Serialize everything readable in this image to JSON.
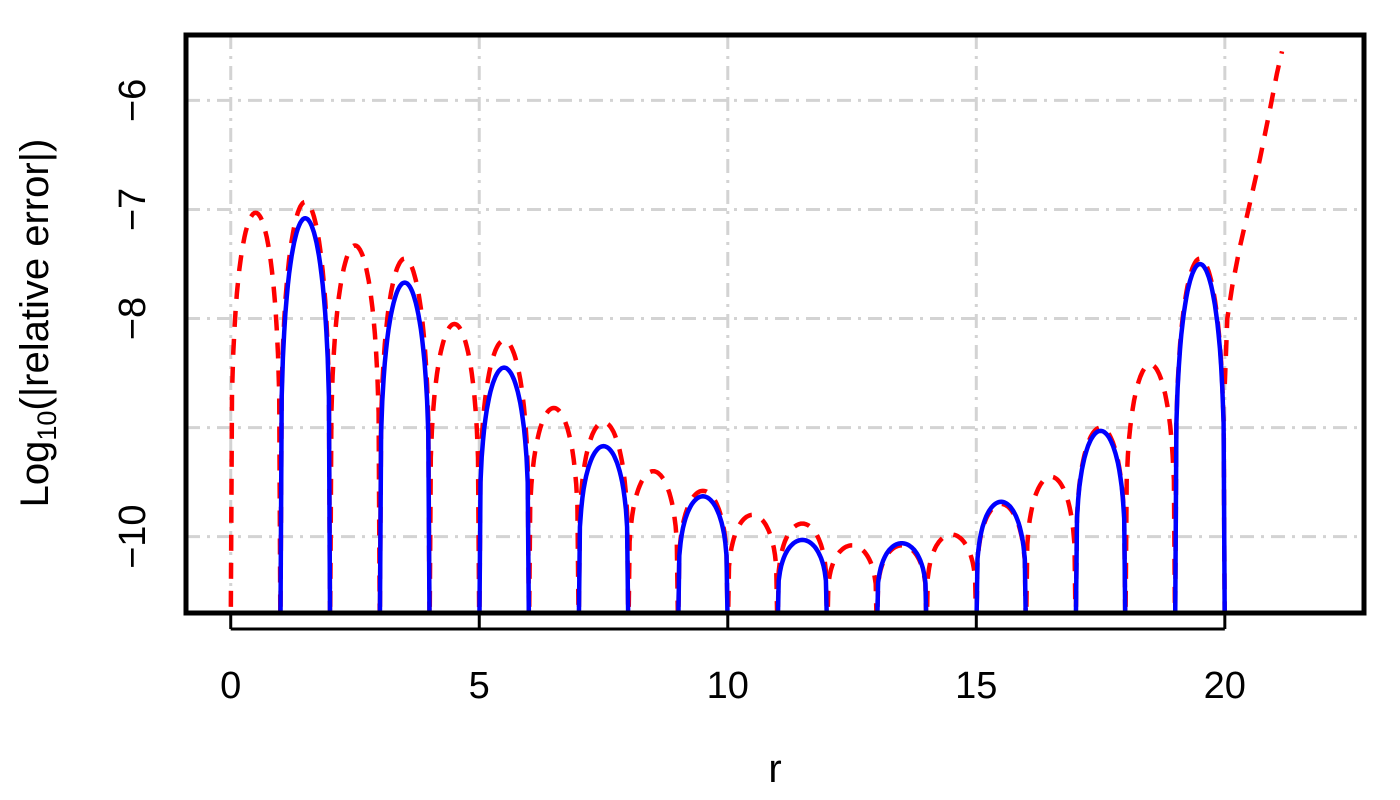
{
  "chart_data": {
    "type": "line",
    "title": "",
    "xlabel": "r",
    "ylabel": {
      "prefix": "Log",
      "subscript": "10",
      "suffix": "(|relative error|)"
    },
    "xlim": [
      -0.9,
      22.8
    ],
    "ylim": [
      -10.7,
      -5.4
    ],
    "x_ticks": [
      0,
      5,
      10,
      15,
      20
    ],
    "x_tick_labels": [
      "0",
      "5",
      "10",
      "15",
      "20"
    ],
    "y_ticks": [
      -6,
      -7,
      -8,
      -9,
      -10
    ],
    "y_tick_labels": [
      "−6",
      "−7",
      "−8",
      "",
      "−10"
    ],
    "grid": true,
    "grid_color": "#d3d3d3",
    "series": [
      {
        "style": "dashed",
        "color": "#ff0000",
        "arches": [
          {
            "x0": 0,
            "x1": 1,
            "peak": -7.03
          },
          {
            "x0": 1,
            "x1": 2,
            "peak": -6.93
          },
          {
            "x0": 2,
            "x1": 3,
            "peak": -7.33
          },
          {
            "x0": 3,
            "x1": 4,
            "peak": -7.45
          },
          {
            "x0": 4,
            "x1": 5,
            "peak": -8.05
          },
          {
            "x0": 5,
            "x1": 6,
            "peak": -8.2
          },
          {
            "x0": 6,
            "x1": 7,
            "peak": -8.82
          },
          {
            "x0": 7,
            "x1": 8,
            "peak": -8.95
          },
          {
            "x0": 8,
            "x1": 9,
            "peak": -9.4
          },
          {
            "x0": 9,
            "x1": 10,
            "peak": -9.58
          },
          {
            "x0": 10,
            "x1": 11,
            "peak": -9.8
          },
          {
            "x0": 11,
            "x1": 12,
            "peak": -9.88
          },
          {
            "x0": 12,
            "x1": 13,
            "peak": -10.08
          },
          {
            "x0": 13,
            "x1": 14,
            "peak": -10.08
          },
          {
            "x0": 14,
            "x1": 15,
            "peak": -9.98
          },
          {
            "x0": 15,
            "x1": 16,
            "peak": -9.7
          },
          {
            "x0": 16,
            "x1": 17,
            "peak": -9.45
          },
          {
            "x0": 17,
            "x1": 18,
            "peak": -9.0
          },
          {
            "x0": 18,
            "x1": 19,
            "peak": -8.42
          },
          {
            "x0": 19,
            "x1": 20,
            "peak": -7.45
          }
        ],
        "tail": {
          "x": [
            20.0,
            20.05,
            20.15,
            20.3,
            20.5,
            20.7,
            20.9,
            21.05,
            21.15
          ],
          "y": [
            -8.6,
            -8.0,
            -7.7,
            -7.35,
            -6.95,
            -6.55,
            -6.1,
            -5.75,
            -5.55
          ]
        }
      },
      {
        "style": "solid",
        "color": "#0000ff",
        "arches": [
          {
            "x0": 1,
            "x1": 2,
            "peak": -7.08
          },
          {
            "x0": 3,
            "x1": 4,
            "peak": -7.67
          },
          {
            "x0": 5,
            "x1": 6,
            "peak": -8.45
          },
          {
            "x0": 7,
            "x1": 8,
            "peak": -9.17
          },
          {
            "x0": 9,
            "x1": 10,
            "peak": -9.63
          },
          {
            "x0": 11,
            "x1": 12,
            "peak": -10.03
          },
          {
            "x0": 13,
            "x1": 14,
            "peak": -10.06
          },
          {
            "x0": 15,
            "x1": 16,
            "peak": -9.68
          },
          {
            "x0": 17,
            "x1": 18,
            "peak": -9.03
          },
          {
            "x0": 19,
            "x1": 20,
            "peak": -7.5
          }
        ]
      }
    ]
  }
}
